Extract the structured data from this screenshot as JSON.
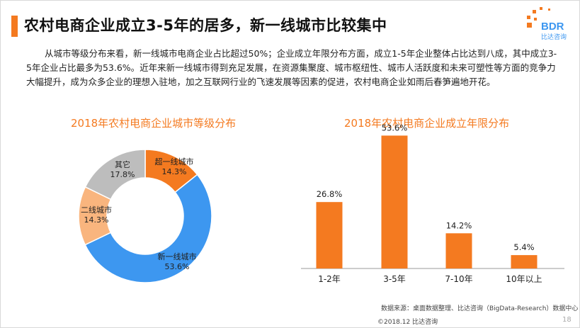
{
  "header": {
    "title": "农村电商企业成立3-5年的居多，新一线城市比较集中",
    "accent_color": "#f47a20"
  },
  "logo": {
    "text": "BDR",
    "subtext": "比达咨询",
    "icon": "bdr-logo-icon"
  },
  "body_text": "从城市等级分布来看，新一线城市电商企业占比超过50%；企业成立年限分布方面，成立1-5年企业整体占比达到八成，其中成立3-5年企业占比最多为53.6%。近年来新一线城市得到充足发展，在资源集聚度、城市枢纽性、城市人活跃度和未来可塑性等方面的竞争力大幅提升，成为众多企业的理想入驻地，加之互联网行业的飞速发展等因素的促进，农村电商企业如雨后春笋遍地开花。",
  "chart_data": [
    {
      "type": "pie",
      "title": "2018年农村电商企业城市等级分布",
      "labels": [
        "超一线城市",
        "新一线城市",
        "二线城市",
        "其它"
      ],
      "values": [
        14.3,
        53.6,
        14.3,
        17.8
      ],
      "value_labels": [
        "14.3%",
        "53.6%",
        "14.3%",
        "17.8%"
      ],
      "colors": [
        "#f47a20",
        "#3d97f0",
        "#f9b57e",
        "#bdbdbd"
      ],
      "donut": true
    },
    {
      "type": "bar",
      "title": "2018年农村电商企业成立年限分布",
      "categories": [
        "1-2年",
        "3-5年",
        "7-10年",
        "10年以上"
      ],
      "values": [
        26.8,
        53.6,
        14.2,
        5.4
      ],
      "value_labels": [
        "26.8%",
        "53.6%",
        "14.2%",
        "5.4%"
      ],
      "color": "#f47a20",
      "ylim": [
        0,
        60
      ]
    }
  ],
  "footer": {
    "source": "数据来源：桌面数据整理、比达咨询（BigData-Research）数据中心",
    "copyright": "©2018.12 比达咨询",
    "page": "18"
  }
}
